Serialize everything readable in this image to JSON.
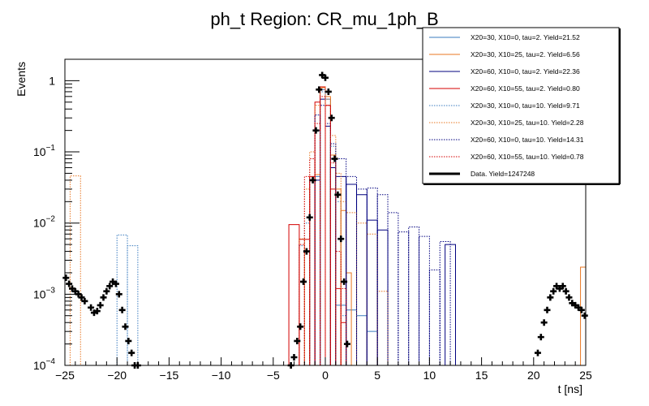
{
  "chart_data": {
    "type": "histogram",
    "title": "ph_t Region: CR_mu_1ph_B",
    "xlabel": "t [ns]",
    "ylabel": "Events",
    "xlim": [
      -25,
      25
    ],
    "ylim": [
      0.0001,
      2
    ],
    "yscale": "log",
    "x_ticks": [
      -25,
      -20,
      -15,
      -10,
      -5,
      0,
      5,
      10,
      15,
      20,
      25
    ],
    "y_ticks": [
      {
        "value": 0.0001,
        "base": "10",
        "exp": "-4"
      },
      {
        "value": 0.001,
        "base": "10",
        "exp": "-3"
      },
      {
        "value": 0.01,
        "base": "10",
        "exp": "-2"
      },
      {
        "value": 0.1,
        "base": "10",
        "exp": "-1"
      },
      {
        "value": 1,
        "base": "1",
        "exp": ""
      }
    ],
    "legend_position": "top-right",
    "series": [
      {
        "name": "X20=30, X10=0, tau=2. Yield=21.52",
        "color": "#3a7bbf",
        "style": "solid",
        "bins": [
          [
            -1.5,
            -1,
            0.0001
          ],
          [
            -1,
            -0.5,
            0.045
          ],
          [
            -0.5,
            0,
            0.75
          ],
          [
            0,
            0.5,
            0.55
          ],
          [
            0.5,
            1,
            0.08
          ],
          [
            1,
            2,
            0.0007
          ],
          [
            2,
            3,
            0.0006
          ],
          [
            3,
            4,
            0.0005
          ],
          [
            4,
            5,
            0.0003
          ],
          [
            5,
            6,
            0.0001
          ]
        ]
      },
      {
        "name": "X20=30, X10=25, tau=2. Yield=6.56",
        "color": "#e87722",
        "style": "solid",
        "bins": [
          [
            -1.5,
            -1,
            0.0001
          ],
          [
            -1,
            -0.5,
            0.048
          ],
          [
            -0.5,
            0,
            0.8
          ],
          [
            0,
            0.5,
            0.6
          ],
          [
            0.5,
            1,
            0.09
          ],
          [
            1,
            1.5,
            0.03
          ],
          [
            1.5,
            2,
            0.015
          ],
          [
            2,
            2.5,
            0.002
          ],
          [
            24.5,
            25,
            0.0024
          ]
        ]
      },
      {
        "name": "X20=60, X10=0, tau=2. Yield=22.36",
        "color": "#00007f",
        "style": "solid",
        "bins": [
          [
            -1.5,
            -1,
            0.0001
          ],
          [
            -1,
            -0.5,
            0.04
          ],
          [
            -0.5,
            0,
            0.55
          ],
          [
            0,
            0.5,
            0.23
          ],
          [
            0.5,
            1,
            0.06
          ],
          [
            1,
            2,
            0.045
          ],
          [
            2,
            3,
            0.035
          ],
          [
            3,
            4,
            0.025
          ],
          [
            4,
            5,
            0.011
          ],
          [
            5,
            6,
            0.008
          ],
          [
            6,
            7,
            0.0001
          ],
          [
            11.5,
            12.5,
            0.005
          ]
        ]
      },
      {
        "name": "X20=60, X10=55, tau=2. Yield=0.80",
        "color": "#d40000",
        "style": "solid",
        "bins": [
          [
            -3.5,
            -2.5,
            0.0095
          ],
          [
            -2.5,
            -1.5,
            0.0059
          ],
          [
            -1.5,
            -1,
            0.045
          ],
          [
            -1,
            -0.5,
            0.5
          ],
          [
            -0.5,
            0,
            0.82
          ],
          [
            0,
            0.5,
            0.45
          ],
          [
            0.5,
            1,
            0.03
          ],
          [
            1,
            1.5,
            0.0012
          ],
          [
            1.5,
            2,
            0.0004
          ],
          [
            2,
            2.5,
            0.0001
          ]
        ]
      },
      {
        "name": "X20=30, X10=0, tau=10. Yield=9.71",
        "color": "#3a7bbf",
        "style": "dotted",
        "bins": [
          [
            -20,
            -19,
            0.0068
          ],
          [
            -19,
            -18,
            0.0048
          ],
          [
            -18.5,
            -17.5,
            0.0001
          ],
          [
            -2.5,
            -2,
            0.0048
          ],
          [
            -2,
            -1.5,
            0.01
          ],
          [
            -1.5,
            -1,
            0.04
          ],
          [
            -1,
            -0.5,
            0.2
          ],
          [
            -0.5,
            0,
            0.7
          ],
          [
            0,
            0.5,
            0.55
          ],
          [
            0.5,
            1,
            0.12
          ],
          [
            1,
            1.5,
            0.02
          ],
          [
            1.5,
            2,
            0.0005
          ]
        ]
      },
      {
        "name": "X20=30, X10=25, tau=10. Yield=2.28",
        "color": "#e87722",
        "style": "dotted",
        "bins": [
          [
            -24.5,
            -23.5,
            0.046
          ],
          [
            -2.5,
            -2,
            0.006
          ],
          [
            -2,
            -1.5,
            0.03
          ],
          [
            -1.5,
            -1,
            0.1
          ],
          [
            -1,
            -0.5,
            0.45
          ],
          [
            -0.5,
            0,
            0.8
          ],
          [
            0,
            0.5,
            0.55
          ],
          [
            0.5,
            1,
            0.17
          ],
          [
            1,
            1.5,
            0.05
          ],
          [
            1.5,
            2,
            0.02
          ],
          [
            2,
            3,
            0.014
          ],
          [
            3,
            4,
            0.01
          ],
          [
            4,
            5,
            0.007
          ],
          [
            5,
            6,
            0.0011
          ],
          [
            6,
            7,
            0.0001
          ]
        ]
      },
      {
        "name": "X20=60, X10=0, tau=10. Yield=14.31",
        "color": "#00007f",
        "style": "dotted",
        "bins": [
          [
            -1.5,
            -1,
            0.04
          ],
          [
            -1,
            -0.5,
            0.33
          ],
          [
            -0.5,
            0,
            0.45
          ],
          [
            0,
            0.5,
            0.25
          ],
          [
            0.5,
            1,
            0.13
          ],
          [
            1,
            2,
            0.08
          ],
          [
            2,
            3,
            0.045
          ],
          [
            3,
            4,
            0.03
          ],
          [
            4,
            5,
            0.031
          ],
          [
            5,
            6,
            0.025
          ],
          [
            6,
            7,
            0.014
          ],
          [
            7,
            8,
            0.0075
          ],
          [
            8,
            9,
            0.0088
          ],
          [
            9,
            10,
            0.0065
          ],
          [
            10,
            11,
            0.0022
          ],
          [
            11,
            12,
            0.0055
          ]
        ]
      },
      {
        "name": "X20=60, X10=55, tau=10. Yield=0.78",
        "color": "#d40000",
        "style": "dotted",
        "bins": [
          [
            -2.5,
            -2,
            0.005
          ],
          [
            -2,
            -1.5,
            0.045
          ],
          [
            -1.5,
            -1,
            0.08
          ],
          [
            -1,
            -0.5,
            0.25
          ],
          [
            -0.5,
            0,
            0.6
          ],
          [
            0,
            0.5,
            0.45
          ],
          [
            0.5,
            1,
            0.07
          ],
          [
            1,
            1.5,
            0.004
          ],
          [
            1.5,
            2,
            0.0012
          ],
          [
            2,
            2.5,
            0.0001
          ]
        ]
      }
    ],
    "data_series": {
      "name": "Data. Yield=1247248",
      "color": "#000000",
      "x": [
        -24.9,
        -24.6,
        -24.3,
        -24,
        -23.7,
        -23.4,
        -23.1,
        -22.5,
        -22.2,
        -21.9,
        -21.6,
        -21.3,
        -21,
        -20.7,
        -20.4,
        -20.1,
        -19.8,
        -19.5,
        -19.2,
        -18.9,
        -18.6,
        -18.3,
        -18,
        -3.3,
        -3,
        -2.7,
        -2.4,
        -2.1,
        -1.8,
        -1.5,
        -1.2,
        -0.9,
        -0.6,
        -0.3,
        0,
        0.3,
        0.6,
        0.9,
        1.2,
        1.5,
        1.8,
        2.1,
        20.4,
        20.7,
        21,
        21.3,
        21.6,
        21.9,
        22.2,
        22.5,
        22.8,
        23.1,
        23.4,
        23.7,
        24,
        24.3,
        24.6,
        24.9
      ],
      "y": [
        0.0017,
        0.0014,
        0.0012,
        0.0011,
        0.001,
        0.0009,
        0.0008,
        0.00065,
        0.00055,
        0.00058,
        0.0007,
        0.0009,
        0.0011,
        0.0013,
        0.0015,
        0.0014,
        0.001,
        0.0006,
        0.00035,
        0.00022,
        0.00015,
        0.0001,
        0.0001,
        0.0001,
        0.00013,
        0.00022,
        0.00035,
        0.0015,
        0.004,
        0.012,
        0.04,
        0.2,
        0.75,
        1.2,
        1.1,
        0.7,
        0.3,
        0.08,
        0.025,
        0.006,
        0.0015,
        0.0002,
        0.00015,
        0.00025,
        0.0004,
        0.0006,
        0.0009,
        0.0011,
        0.0013,
        0.0012,
        0.0013,
        0.0011,
        0.0009,
        0.00075,
        0.0007,
        0.00065,
        0.0006,
        0.0005
      ]
    }
  }
}
